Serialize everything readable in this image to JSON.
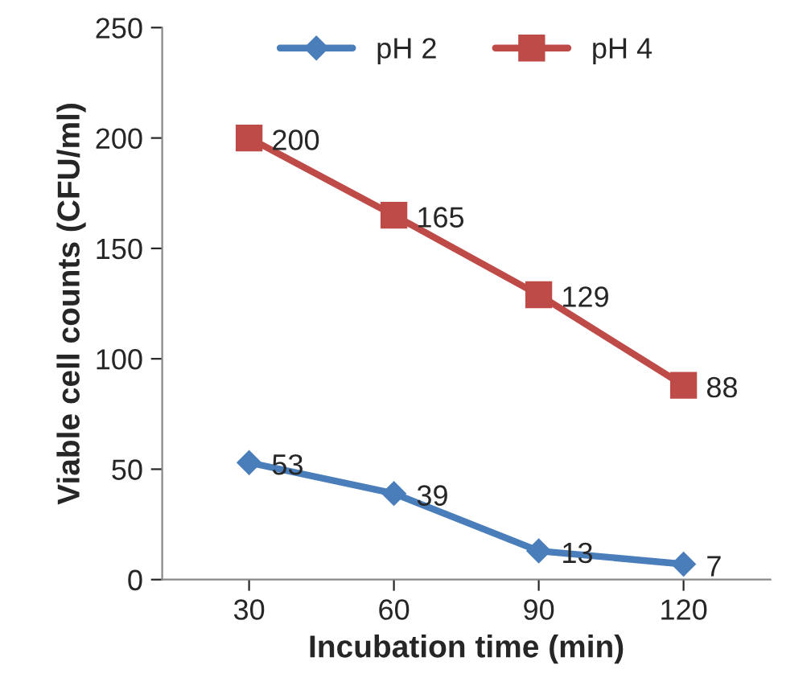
{
  "chart_data": {
    "type": "line",
    "xlabel": "Incubation time (min)",
    "ylabel": "Viable cell counts (CFU/ml)",
    "categories": [
      "30",
      "60",
      "90",
      "120"
    ],
    "series": [
      {
        "name": "pH 2",
        "color": "#4a7ebb",
        "marker": "diamond",
        "values": [
          53,
          39,
          13,
          7
        ]
      },
      {
        "name": "pH 4",
        "color": "#be4b48",
        "marker": "square",
        "values": [
          200,
          165,
          129,
          88
        ]
      }
    ],
    "ylim": [
      0,
      250
    ],
    "yticks": [
      0,
      50,
      100,
      150,
      200,
      250
    ],
    "data_labels": true,
    "legend": "top",
    "grid": false
  }
}
